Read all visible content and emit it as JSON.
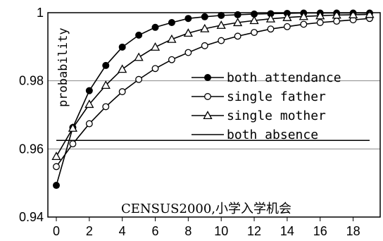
{
  "chart_data": {
    "type": "line",
    "ylabel": "probability",
    "annotation": "CENSUS2000,小学入学机会",
    "xlim": [
      0,
      19
    ],
    "ylim": [
      0.94,
      1
    ],
    "xticks": [
      "0",
      "2",
      "4",
      "6",
      "8",
      "10",
      "12",
      "14",
      "16",
      "18"
    ],
    "yticks": [
      "0.94",
      "0.96",
      "0.98",
      "1"
    ],
    "grid": "horizontal",
    "legend": "right",
    "x": [
      0,
      1,
      2,
      3,
      4,
      5,
      6,
      7,
      8,
      9,
      10,
      11,
      12,
      13,
      14,
      15,
      16,
      17,
      18,
      19
    ],
    "series": [
      {
        "name": "both attendance",
        "marker": "filled-circle",
        "values": [
          0.9493,
          0.9663,
          0.9771,
          0.9845,
          0.9899,
          0.9934,
          0.9957,
          0.9971,
          0.9983,
          0.9988,
          0.9992,
          0.9994,
          0.9996,
          0.9997,
          0.9998,
          0.9999,
          0.9999,
          0.9999,
          0.9999,
          0.9999
        ]
      },
      {
        "name": "single father",
        "marker": "open-circle",
        "values": [
          0.9548,
          0.9615,
          0.9674,
          0.9724,
          0.9768,
          0.9804,
          0.9836,
          0.9862,
          0.9883,
          0.9903,
          0.9918,
          0.9931,
          0.9942,
          0.9952,
          0.9959,
          0.9966,
          0.9971,
          0.9975,
          0.9979,
          0.9983
        ]
      },
      {
        "name": "single mother",
        "marker": "open-triangle",
        "values": [
          0.9578,
          0.9661,
          0.9731,
          0.9787,
          0.9834,
          0.9869,
          0.9899,
          0.9922,
          0.994,
          0.9953,
          0.9963,
          0.9971,
          0.9977,
          0.9982,
          0.9986,
          0.9989,
          0.9991,
          0.9993,
          0.9994,
          0.9995
        ]
      },
      {
        "name": "both absence",
        "marker": "none",
        "values": [
          0.9625,
          0.9625,
          0.9625,
          0.9625,
          0.9625,
          0.9625,
          0.9625,
          0.9625,
          0.9625,
          0.9625,
          0.9625,
          0.9625,
          0.9625,
          0.9625,
          0.9625,
          0.9625,
          0.9625,
          0.9625,
          0.9625,
          0.9625
        ]
      }
    ]
  }
}
